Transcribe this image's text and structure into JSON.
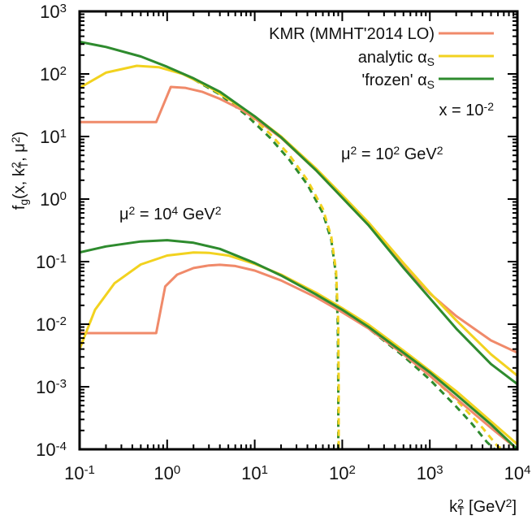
{
  "chart_data": {
    "type": "line",
    "title": "",
    "xlabel": "k_T^2 [GeV^2]",
    "xlabel_parts": {
      "base": "k",
      "sup": "2",
      "sub": "T",
      "rest": " [GeV",
      "unit_sup": "2",
      "close": "]"
    },
    "ylabel": "f_g(x, k_T^2, μ^2)",
    "ylabel_parts": {
      "f": "f",
      "f_sub": "g",
      "open": "(x, k",
      "k_sup": "2",
      "k_sub": "T",
      "mid": ", μ",
      "mu_sup": "2",
      "close": ")"
    },
    "xscale": "log",
    "yscale": "log",
    "xlim": [
      0.1,
      10000
    ],
    "ylim": [
      0.0001,
      1000
    ],
    "grid": false,
    "xticks": [
      {
        "base": "10",
        "exp": "-1"
      },
      {
        "base": "10",
        "exp": "0"
      },
      {
        "base": "10",
        "exp": "1"
      },
      {
        "base": "10",
        "exp": "2"
      },
      {
        "base": "10",
        "exp": "3"
      },
      {
        "base": "10",
        "exp": "4"
      }
    ],
    "yticks": [
      {
        "base": "10",
        "exp": "3"
      },
      {
        "base": "10",
        "exp": "2"
      },
      {
        "base": "10",
        "exp": "1"
      },
      {
        "base": "10",
        "exp": "0"
      },
      {
        "base": "10",
        "exp": "-1"
      },
      {
        "base": "10",
        "exp": "-2"
      },
      {
        "base": "10",
        "exp": "-3"
      },
      {
        "base": "10",
        "exp": "-4"
      }
    ],
    "legend": {
      "placement": "top-right",
      "entries": [
        {
          "label": "KMR (MMHT'2014 LO)",
          "color": "#f08a6a"
        },
        {
          "label": "analytic α",
          "sub": "S",
          "color": "#f2d21f"
        },
        {
          "label": "'frozen' α",
          "sub": "S",
          "color": "#2e8b2e"
        }
      ]
    },
    "annotations": [
      {
        "id": "x-value",
        "text": "x = 10",
        "sup": "-2"
      },
      {
        "id": "mu2-1e2",
        "pre": "μ",
        "sup1": "2",
        "mid": " = 10",
        "sup2": "2",
        "post": " GeV",
        "sup3": "2"
      },
      {
        "id": "mu2-1e4",
        "pre": "μ",
        "sup1": "2",
        "mid": " = 10",
        "sup2": "4",
        "post": " GeV",
        "sup3": "2"
      }
    ],
    "series": [
      {
        "name": "KMR (MMHT'2014 LO)",
        "group": "mu2=1e2",
        "style": "solid",
        "color": "#f08a6a",
        "x": [
          0.1,
          0.75,
          1.1,
          1.6,
          2.5,
          4,
          7,
          10,
          20,
          50,
          100,
          200,
          500,
          1000,
          2000,
          5000,
          10000
        ],
        "y": [
          17,
          17,
          62,
          60,
          52,
          40,
          27,
          19.5,
          9.5,
          2.9,
          1.05,
          0.38,
          0.085,
          0.031,
          0.0135,
          0.0055,
          0.0035
        ]
      },
      {
        "name": "analytic αS",
        "group": "mu2=1e2",
        "style": "solid",
        "color": "#f2d21f",
        "x": [
          0.1,
          0.2,
          0.45,
          0.8,
          1.5,
          3,
          6,
          10,
          20,
          50,
          100,
          200,
          500,
          1000,
          2000,
          5000,
          10000
        ],
        "y": [
          60,
          105,
          135,
          128,
          100,
          62,
          34,
          21,
          10,
          3.1,
          1.15,
          0.42,
          0.095,
          0.032,
          0.0115,
          0.0033,
          0.0015
        ]
      },
      {
        "name": "'frozen' αS",
        "group": "mu2=1e2",
        "style": "solid",
        "color": "#2e8b2e",
        "x": [
          0.1,
          0.2,
          0.5,
          1,
          2,
          4,
          10,
          20,
          50,
          100,
          200,
          500,
          1000,
          2000,
          5000,
          10000
        ],
        "y": [
          326,
          270,
          190,
          130,
          85,
          52,
          21,
          9.7,
          2.9,
          1.05,
          0.38,
          0.08,
          0.026,
          0.0085,
          0.0023,
          0.0011
        ]
      },
      {
        "name": "analytic αS (cut)",
        "group": "mu2=1e2",
        "style": "dashed",
        "color": "#f2d21f",
        "x": [
          2,
          4,
          8,
          15,
          25,
          40,
          60,
          75,
          85,
          90,
          91,
          91
        ],
        "y": [
          85,
          50,
          25,
          11,
          5,
          2,
          0.7,
          0.25,
          0.07,
          0.01,
          0.001,
          0.0001
        ]
      },
      {
        "name": "'frozen' αS (cut)",
        "group": "mu2=1e2",
        "style": "dashed",
        "color": "#2e8b2e",
        "x": [
          2,
          4,
          8,
          15,
          25,
          40,
          60,
          75,
          85,
          89,
          90,
          90
        ],
        "y": [
          82,
          47,
          22,
          9.5,
          4.2,
          1.7,
          0.6,
          0.22,
          0.06,
          0.01,
          0.001,
          0.0001
        ]
      },
      {
        "name": "KMR (MMHT'2014 LO)",
        "group": "mu2=1e4",
        "style": "solid",
        "color": "#f08a6a",
        "x": [
          0.1,
          0.75,
          0.95,
          1.3,
          2,
          3,
          4,
          6,
          10,
          20,
          50,
          100,
          200,
          500,
          1000,
          2000,
          5000,
          10000
        ],
        "y": [
          0.0072,
          0.0072,
          0.04,
          0.062,
          0.079,
          0.087,
          0.089,
          0.085,
          0.072,
          0.05,
          0.027,
          0.0155,
          0.0085,
          0.0033,
          0.0015,
          0.00065,
          0.00022,
          0.0001
        ]
      },
      {
        "name": "analytic αS",
        "group": "mu2=1e4",
        "style": "solid",
        "color": "#f2d21f",
        "x": [
          0.1,
          0.15,
          0.25,
          0.5,
          1,
          2,
          3,
          5,
          10,
          20,
          50,
          100,
          200,
          500,
          1000,
          2000,
          5000,
          10000
        ],
        "y": [
          0.004,
          0.017,
          0.045,
          0.09,
          0.125,
          0.14,
          0.138,
          0.125,
          0.092,
          0.062,
          0.032,
          0.018,
          0.0098,
          0.0038,
          0.0018,
          0.00085,
          0.00028,
          0.00012
        ]
      },
      {
        "name": "'frozen' αS",
        "group": "mu2=1e4",
        "style": "solid",
        "color": "#2e8b2e",
        "x": [
          0.1,
          0.2,
          0.5,
          1,
          2,
          4,
          10,
          20,
          50,
          100,
          200,
          500,
          1000,
          2000,
          5000,
          10000
        ],
        "y": [
          0.14,
          0.175,
          0.21,
          0.22,
          0.2,
          0.16,
          0.095,
          0.06,
          0.03,
          0.017,
          0.009,
          0.0035,
          0.0017,
          0.00075,
          0.00025,
          0.0001
        ]
      },
      {
        "name": "analytic αS (cut)",
        "group": "mu2=1e4",
        "style": "dashed",
        "color": "#f2d21f",
        "x": [
          100,
          200,
          500,
          1000,
          2000,
          4000,
          6000,
          7000
        ],
        "y": [
          0.017,
          0.0092,
          0.0034,
          0.0015,
          0.00062,
          0.00022,
          0.00011,
          0.0001
        ]
      },
      {
        "name": "'frozen' αS (cut)",
        "group": "mu2=1e4",
        "style": "dashed",
        "color": "#2e8b2e",
        "x": [
          100,
          200,
          500,
          1000,
          2000,
          3000,
          4500,
          5500
        ],
        "y": [
          0.016,
          0.0085,
          0.0031,
          0.0013,
          0.00048,
          0.00026,
          0.00013,
          0.0001
        ]
      }
    ]
  }
}
